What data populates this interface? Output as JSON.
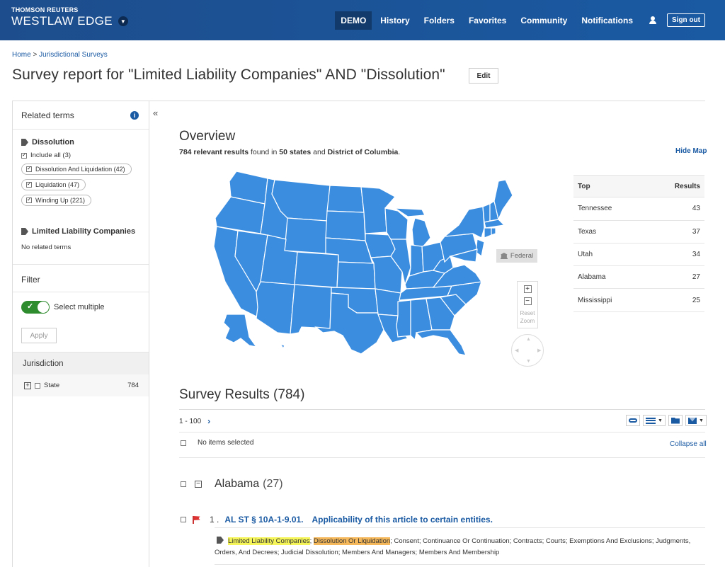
{
  "header": {
    "brand_top": "THOMSON REUTERS",
    "brand_bottom": "WESTLAW EDGE",
    "nav": [
      "DEMO",
      "History",
      "Folders",
      "Favorites",
      "Community",
      "Notifications"
    ],
    "sign_out": "Sign out"
  },
  "breadcrumb": {
    "home": "Home",
    "separator": " > ",
    "current": "Jurisdictional Surveys"
  },
  "title": "Survey report for \"Limited Liability Companies\" AND \"Dissolution\"",
  "edit_label": "Edit",
  "sidebar": {
    "related_terms_label": "Related terms",
    "group1": {
      "title": "Dissolution",
      "include_all": "Include all (3)",
      "terms": [
        "Dissolution And Liquidation (42)",
        "Liquidation (47)",
        "Winding Up (221)"
      ]
    },
    "group2": {
      "title": "Limited Liability Companies",
      "empty": "No related terms"
    },
    "filter_label": "Filter",
    "select_multiple": "Select multiple",
    "apply": "Apply",
    "jurisdiction_label": "Jurisdiction",
    "jurisdiction_row": {
      "label": "State",
      "count": "784"
    }
  },
  "overview": {
    "title": "Overview",
    "count": "784 relevant results",
    "found_in": " found in ",
    "states": "50 states",
    "and": " and ",
    "district": "District of Columbia",
    "period": ".",
    "hide_map": "Hide Map",
    "federal": "Federal",
    "reset_zoom": "Reset Zoom"
  },
  "top_table": {
    "head_left": "Top",
    "head_right": "Results",
    "rows": [
      {
        "name": "Tennessee",
        "value": "43"
      },
      {
        "name": "Texas",
        "value": "37"
      },
      {
        "name": "Utah",
        "value": "34"
      },
      {
        "name": "Alabama",
        "value": "27"
      },
      {
        "name": "Mississippi",
        "value": "25"
      }
    ]
  },
  "results": {
    "title": "Survey Results (784)",
    "paging": "1 - 100",
    "no_items": "No items selected",
    "collapse_all": "Collapse all",
    "state": {
      "name": "Alabama",
      "count": "(27)"
    },
    "item": {
      "num": "1 .",
      "cite": "AL ST §  10A-1-9.01.",
      "title": "Applicability of this article to certain entities.",
      "hl1": "Limited Liability Companies",
      "sep": "; ",
      "hl2": "Dissolution Or Liquidation",
      "rest": "; Consent; Continuance Or Continuation; Contracts; Courts; Exemptions And Exclusions; Judgments, Orders, And Decrees; Judicial Dissolution; Members And Managers; Members And Membership"
    }
  },
  "colors": {
    "header": "#1a5aa3",
    "map_fill": "#3b8de0",
    "link": "#1a5aa3",
    "toggle_on": "#2e8b2e"
  },
  "icons": [
    "chevron-down-icon",
    "user-icon",
    "info-icon",
    "tag-icon",
    "check-icon",
    "collapse-left-icon",
    "bank-icon",
    "zoom-in-icon",
    "zoom-out-icon",
    "pan-icon",
    "chevron-right-icon",
    "link-icon",
    "list-icon",
    "folder-icon",
    "mail-icon",
    "flag-icon"
  ]
}
